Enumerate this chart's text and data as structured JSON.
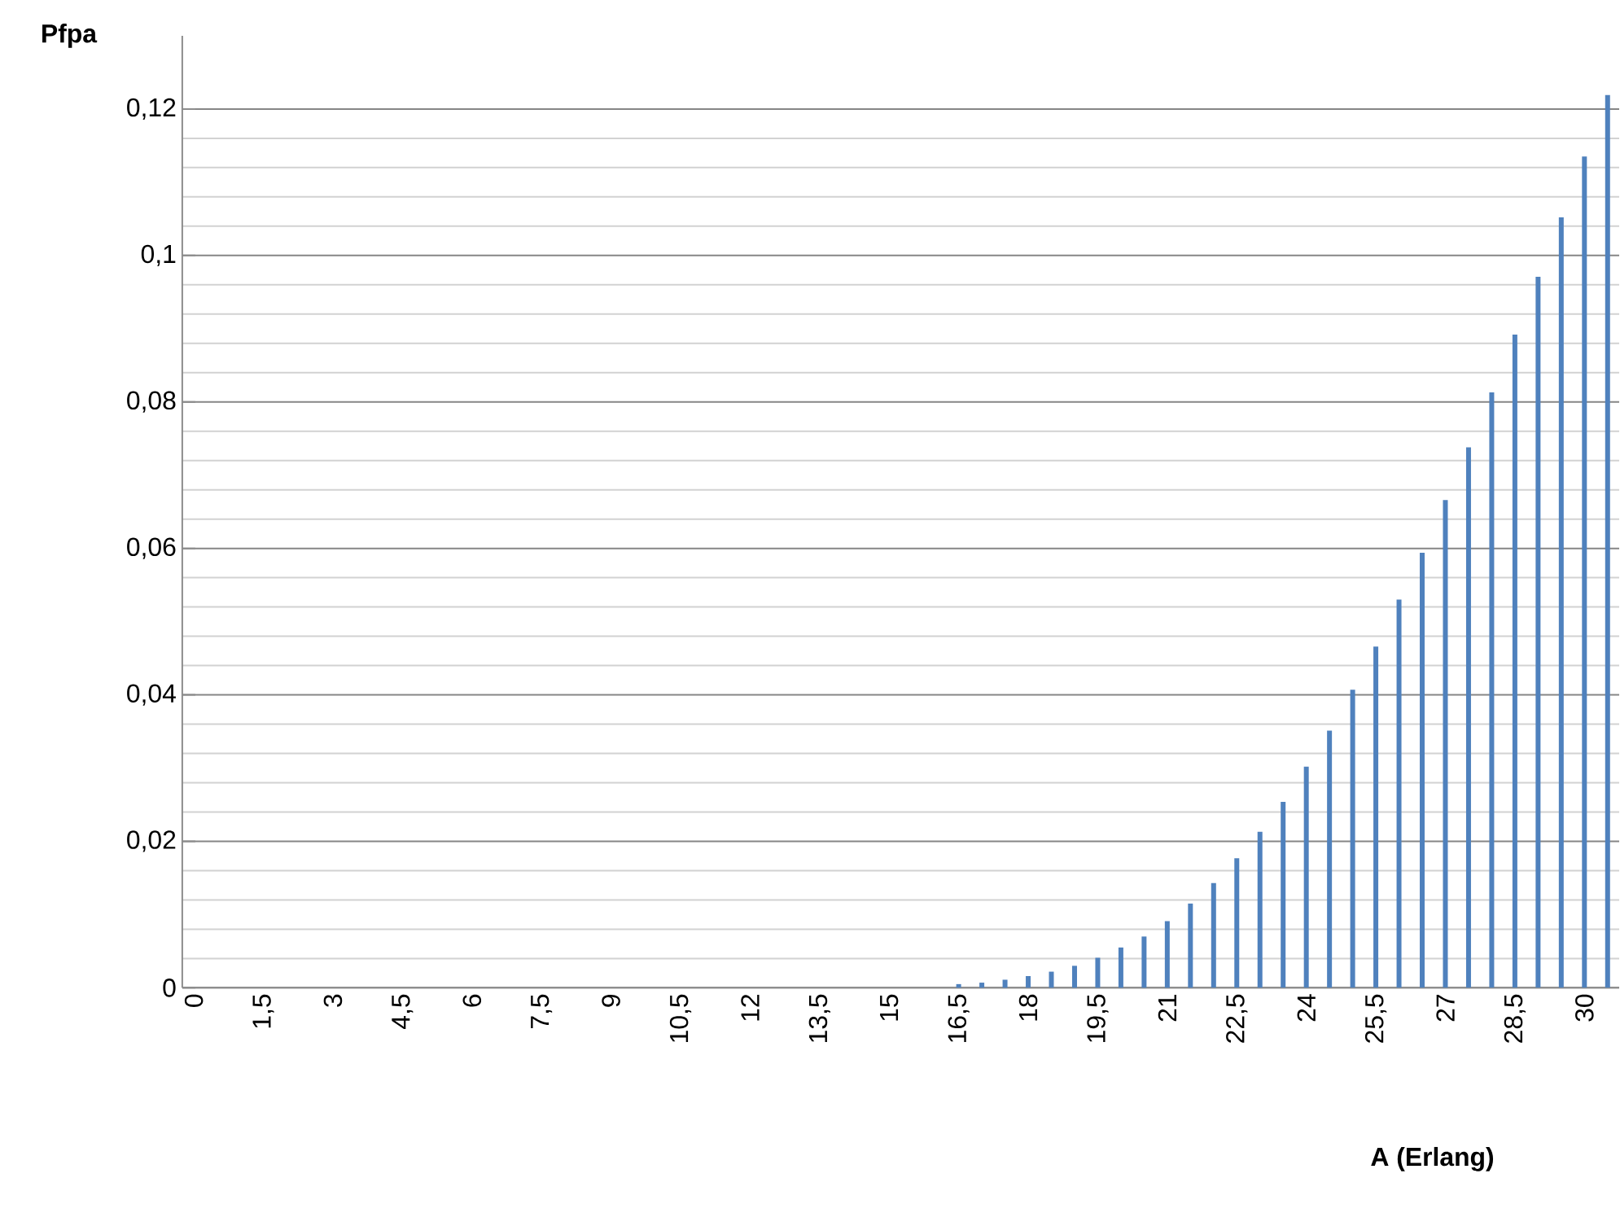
{
  "chart_data": {
    "type": "bar",
    "xlabel": "A (Erlang)",
    "ylabel": "Pfpa",
    "categories": [
      "0",
      null,
      null,
      "1,5",
      null,
      null,
      "3",
      null,
      null,
      "4,5",
      null,
      null,
      "6",
      null,
      null,
      "7,5",
      null,
      null,
      "9",
      null,
      null,
      "10,5",
      null,
      null,
      "12",
      null,
      null,
      "13,5",
      null,
      null,
      "15",
      null,
      null,
      "16,5",
      null,
      null,
      "18",
      null,
      null,
      "19,5",
      null,
      null,
      "21",
      null,
      null,
      "22,5",
      null,
      null,
      "24",
      null,
      null,
      "25,5",
      null,
      null,
      "27",
      null,
      null,
      "28,5",
      null,
      null,
      "30",
      null
    ],
    "values": [
      0,
      0,
      0,
      0,
      0,
      0,
      0,
      0,
      0,
      0,
      0,
      0,
      0,
      0,
      0,
      0,
      0,
      0,
      0,
      0,
      0,
      0,
      0,
      0,
      0,
      0,
      0,
      0,
      0,
      0,
      0,
      null,
      null,
      0.0005,
      0.0007,
      0.0011,
      0.0016,
      0.0022,
      0.003,
      0.0041,
      0.0055,
      0.007,
      0.0091,
      0.0115,
      0.0143,
      0.0177,
      0.0213,
      0.0254,
      0.0302,
      0.0351,
      0.0407,
      0.0466,
      0.053,
      0.0594,
      0.0666,
      0.0738,
      0.0813,
      0.0892,
      0.0971,
      0.1052,
      0.1135,
      0.1219
    ],
    "color": "#4f81bd",
    "ylim": [
      0,
      0.13
    ],
    "yticks": [
      0,
      {
        "value": 0.02,
        "label": "0,02"
      },
      {
        "value": 0.04,
        "label": "0,04"
      },
      {
        "value": 0.06,
        "label": "0,06"
      },
      {
        "value": 0.08,
        "label": "0,08"
      },
      {
        "value": 0.1,
        "label": "0,1"
      },
      {
        "value": 0.12,
        "label": "0,12"
      }
    ],
    "grid": "y"
  }
}
